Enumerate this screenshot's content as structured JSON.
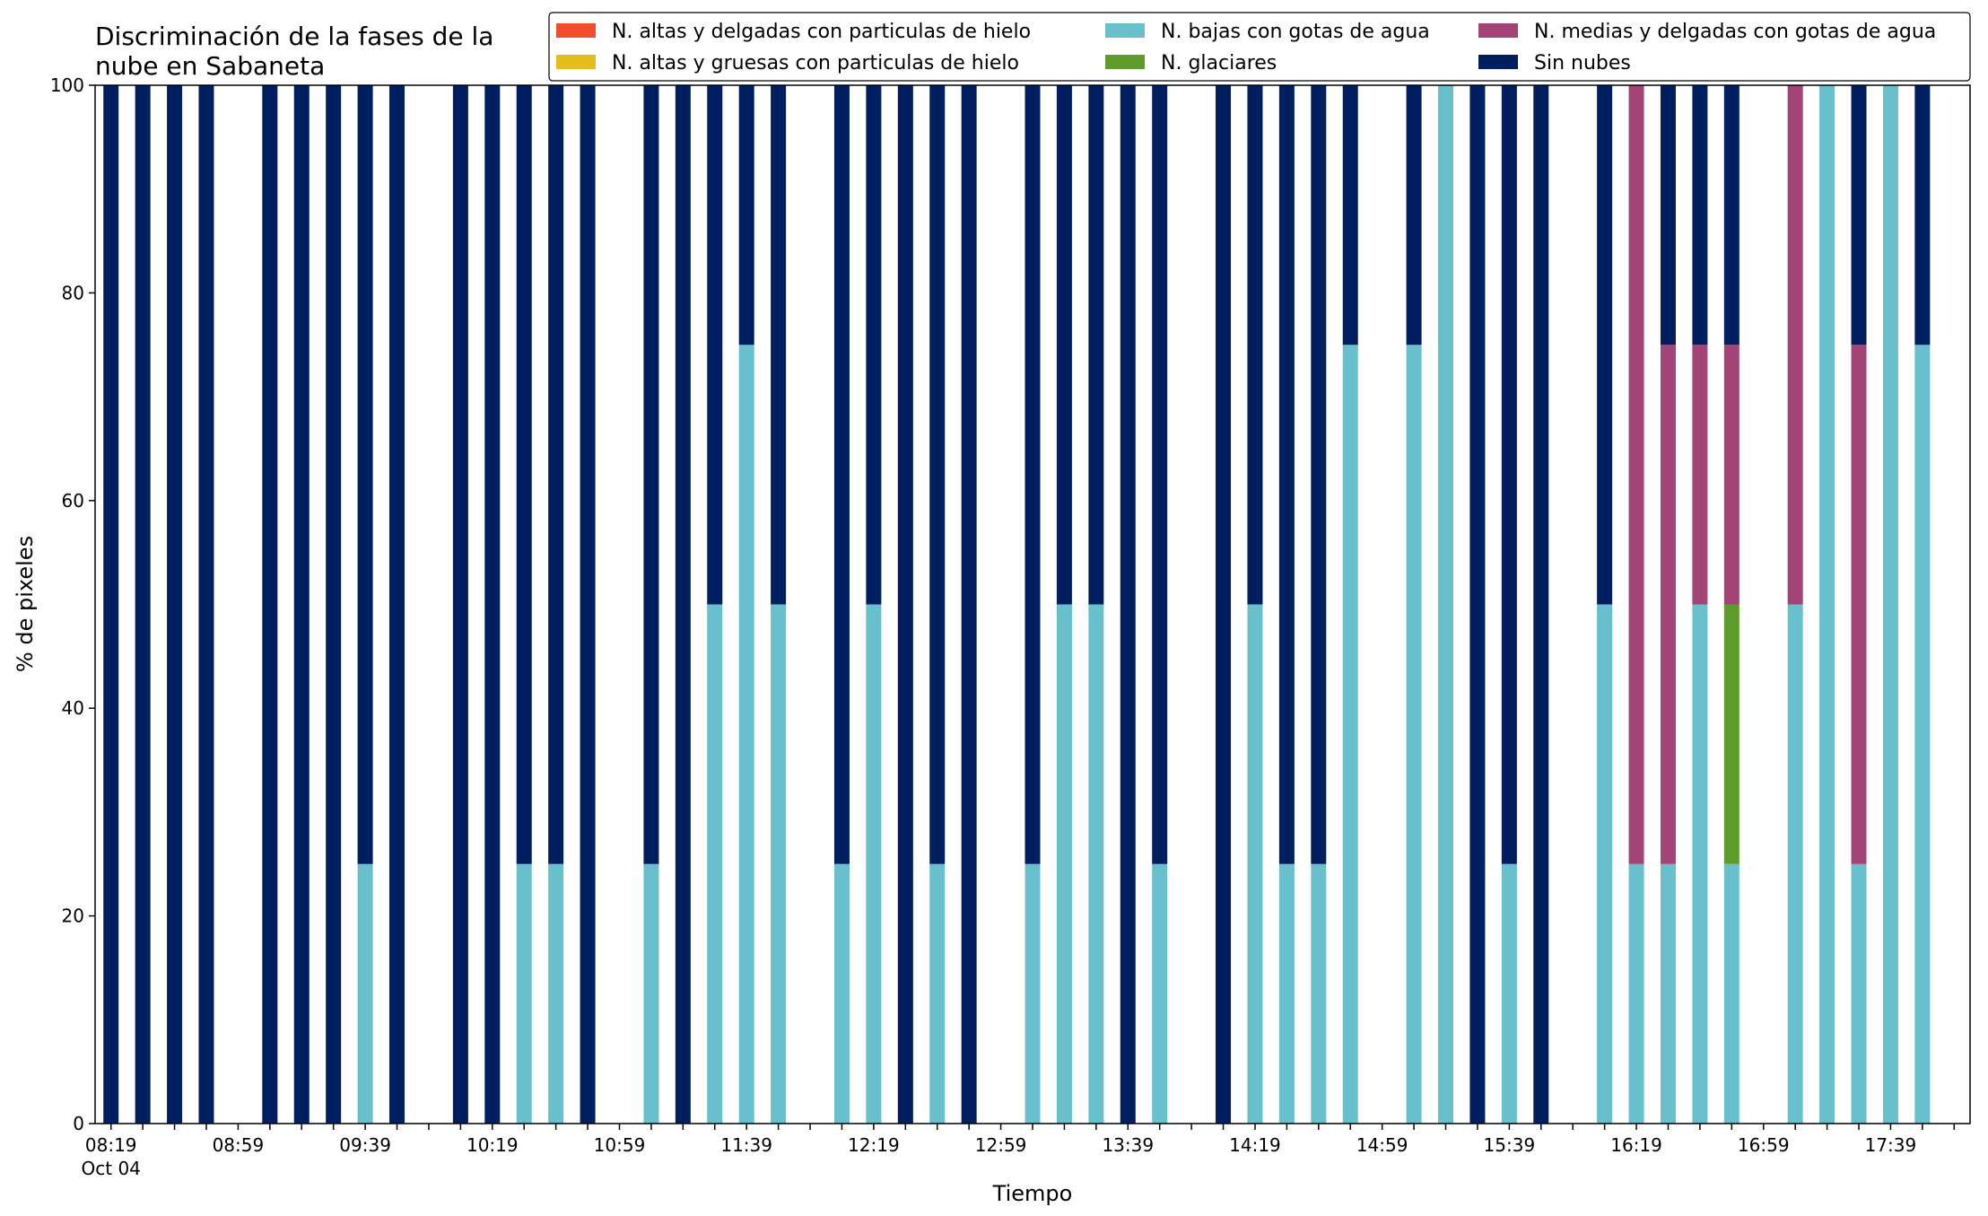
{
  "chart_data": {
    "type": "bar",
    "stacked": true,
    "title_line1": "Discriminación de la fases de la",
    "title_line2": "nube en Sabaneta",
    "xlabel": "Tiempo",
    "ylabel": "% de pixeles",
    "ylim": [
      0,
      100
    ],
    "yticks": [
      0,
      20,
      40,
      60,
      80,
      100
    ],
    "x_start": "08:19",
    "x_step_minutes": 10,
    "x_count": 59,
    "xtick_labels": [
      {
        "index": 0,
        "label": "08:19",
        "sub": "Oct 04"
      },
      {
        "index": 4,
        "label": "08:59"
      },
      {
        "index": 8,
        "label": "09:39"
      },
      {
        "index": 12,
        "label": "10:19"
      },
      {
        "index": 16,
        "label": "10:59"
      },
      {
        "index": 20,
        "label": "11:39"
      },
      {
        "index": 24,
        "label": "12:19"
      },
      {
        "index": 28,
        "label": "12:59"
      },
      {
        "index": 32,
        "label": "13:39"
      },
      {
        "index": 36,
        "label": "14:19"
      },
      {
        "index": 40,
        "label": "14:59"
      },
      {
        "index": 44,
        "label": "15:39"
      },
      {
        "index": 48,
        "label": "16:19"
      },
      {
        "index": 52,
        "label": "16:59"
      },
      {
        "index": 56,
        "label": "17:39"
      }
    ],
    "grid": false,
    "legend_position": "top-right",
    "legend_columns": 3,
    "series": [
      {
        "key": "altas_delgadas",
        "name": "N. altas y delgadas con particulas de hielo",
        "color": "#f04e2c"
      },
      {
        "key": "altas_gruesas",
        "name": "N. altas y gruesas con particulas de hielo",
        "color": "#e4bc1c"
      },
      {
        "key": "bajas",
        "name": "N. bajas con gotas de agua",
        "color": "#68c0cc"
      },
      {
        "key": "glaciares",
        "name": "N. glaciares",
        "color": "#5d9c2b"
      },
      {
        "key": "medias",
        "name": "N. medias y delgadas con gotas de agua",
        "color": "#a34477"
      },
      {
        "key": "sin_nubes",
        "name": "Sin nubes",
        "color": "#001f60"
      }
    ],
    "stack_order": [
      "bajas",
      "glaciares",
      "medias",
      "altas_delgadas",
      "altas_gruesas",
      "sin_nubes"
    ],
    "bars": [
      {
        "x": "08:19",
        "bajas": 0,
        "glaciares": 0,
        "medias": 0,
        "sin_nubes": 100
      },
      {
        "x": "08:29",
        "bajas": 0,
        "glaciares": 0,
        "medias": 0,
        "sin_nubes": 100
      },
      {
        "x": "08:39",
        "bajas": 0,
        "glaciares": 0,
        "medias": 0,
        "sin_nubes": 100
      },
      {
        "x": "08:49",
        "bajas": 0,
        "glaciares": 0,
        "medias": 0,
        "sin_nubes": 100
      },
      {
        "x": "09:09",
        "bajas": 0,
        "glaciares": 0,
        "medias": 0,
        "sin_nubes": 100
      },
      {
        "x": "09:19",
        "bajas": 0,
        "glaciares": 0,
        "medias": 0,
        "sin_nubes": 100
      },
      {
        "x": "09:29",
        "bajas": 0,
        "glaciares": 0,
        "medias": 0,
        "sin_nubes": 100
      },
      {
        "x": "09:39",
        "bajas": 25,
        "glaciares": 0,
        "medias": 0,
        "sin_nubes": 75
      },
      {
        "x": "09:49",
        "bajas": 0,
        "glaciares": 0,
        "medias": 0,
        "sin_nubes": 100
      },
      {
        "x": "10:09",
        "bajas": 0,
        "glaciares": 0,
        "medias": 0,
        "sin_nubes": 100
      },
      {
        "x": "10:19",
        "bajas": 0,
        "glaciares": 0,
        "medias": 0,
        "sin_nubes": 100
      },
      {
        "x": "10:29",
        "bajas": 25,
        "glaciares": 0,
        "medias": 0,
        "sin_nubes": 75
      },
      {
        "x": "10:39",
        "bajas": 25,
        "glaciares": 0,
        "medias": 0,
        "sin_nubes": 75
      },
      {
        "x": "10:49",
        "bajas": 0,
        "glaciares": 0,
        "medias": 0,
        "sin_nubes": 100
      },
      {
        "x": "11:09",
        "bajas": 25,
        "glaciares": 0,
        "medias": 0,
        "sin_nubes": 75
      },
      {
        "x": "11:19",
        "bajas": 0,
        "glaciares": 0,
        "medias": 0,
        "sin_nubes": 100
      },
      {
        "x": "11:29",
        "bajas": 50,
        "glaciares": 0,
        "medias": 0,
        "sin_nubes": 50
      },
      {
        "x": "11:39",
        "bajas": 75,
        "glaciares": 0,
        "medias": 0,
        "sin_nubes": 25
      },
      {
        "x": "11:49",
        "bajas": 50,
        "glaciares": 0,
        "medias": 0,
        "sin_nubes": 50
      },
      {
        "x": "12:09",
        "bajas": 25,
        "glaciares": 0,
        "medias": 0,
        "sin_nubes": 75
      },
      {
        "x": "12:19",
        "bajas": 50,
        "glaciares": 0,
        "medias": 0,
        "sin_nubes": 50
      },
      {
        "x": "12:29",
        "bajas": 0,
        "glaciares": 0,
        "medias": 0,
        "sin_nubes": 100
      },
      {
        "x": "12:39",
        "bajas": 25,
        "glaciares": 0,
        "medias": 0,
        "sin_nubes": 75
      },
      {
        "x": "12:49",
        "bajas": 0,
        "glaciares": 0,
        "medias": 0,
        "sin_nubes": 100
      },
      {
        "x": "13:09",
        "bajas": 25,
        "glaciares": 0,
        "medias": 0,
        "sin_nubes": 75
      },
      {
        "x": "13:19",
        "bajas": 50,
        "glaciares": 0,
        "medias": 0,
        "sin_nubes": 50
      },
      {
        "x": "13:29",
        "bajas": 50,
        "glaciares": 0,
        "medias": 0,
        "sin_nubes": 50
      },
      {
        "x": "13:39",
        "bajas": 0,
        "glaciares": 0,
        "medias": 0,
        "sin_nubes": 100
      },
      {
        "x": "13:49",
        "bajas": 25,
        "glaciares": 0,
        "medias": 0,
        "sin_nubes": 75
      },
      {
        "x": "14:09",
        "bajas": 0,
        "glaciares": 0,
        "medias": 0,
        "sin_nubes": 100
      },
      {
        "x": "14:19",
        "bajas": 50,
        "glaciares": 0,
        "medias": 0,
        "sin_nubes": 50
      },
      {
        "x": "14:29",
        "bajas": 25,
        "glaciares": 0,
        "medias": 0,
        "sin_nubes": 75
      },
      {
        "x": "14:39",
        "bajas": 25,
        "glaciares": 0,
        "medias": 0,
        "sin_nubes": 75
      },
      {
        "x": "14:49",
        "bajas": 75,
        "glaciares": 0,
        "medias": 0,
        "sin_nubes": 25
      },
      {
        "x": "15:09",
        "bajas": 75,
        "glaciares": 0,
        "medias": 0,
        "sin_nubes": 25
      },
      {
        "x": "15:19",
        "bajas": 100,
        "glaciares": 0,
        "medias": 0,
        "sin_nubes": 0
      },
      {
        "x": "15:29",
        "bajas": 0,
        "glaciares": 0,
        "medias": 0,
        "sin_nubes": 100
      },
      {
        "x": "15:39",
        "bajas": 25,
        "glaciares": 0,
        "medias": 0,
        "sin_nubes": 75
      },
      {
        "x": "15:49",
        "bajas": 0,
        "glaciares": 0,
        "medias": 0,
        "sin_nubes": 100
      },
      {
        "x": "16:09",
        "bajas": 50,
        "glaciares": 0,
        "medias": 0,
        "sin_nubes": 50
      },
      {
        "x": "16:19",
        "bajas": 25,
        "glaciares": 0,
        "medias": 75,
        "sin_nubes": 0
      },
      {
        "x": "16:29",
        "bajas": 25,
        "glaciares": 0,
        "medias": 50,
        "sin_nubes": 25
      },
      {
        "x": "16:39",
        "bajas": 50,
        "glaciares": 0,
        "medias": 25,
        "sin_nubes": 25
      },
      {
        "x": "16:49",
        "bajas": 25,
        "glaciares": 25,
        "medias": 25,
        "sin_nubes": 25
      },
      {
        "x": "17:09",
        "bajas": 50,
        "glaciares": 0,
        "medias": 50,
        "sin_nubes": 0
      },
      {
        "x": "17:19",
        "bajas": 100,
        "glaciares": 0,
        "medias": 0,
        "sin_nubes": 0
      },
      {
        "x": "17:29",
        "bajas": 25,
        "glaciares": 0,
        "medias": 50,
        "sin_nubes": 25
      },
      {
        "x": "17:39",
        "bajas": 100,
        "glaciares": 0,
        "medias": 0,
        "sin_nubes": 0
      },
      {
        "x": "17:49",
        "bajas": 75,
        "glaciares": 0,
        "medias": 0,
        "sin_nubes": 25
      }
    ]
  }
}
